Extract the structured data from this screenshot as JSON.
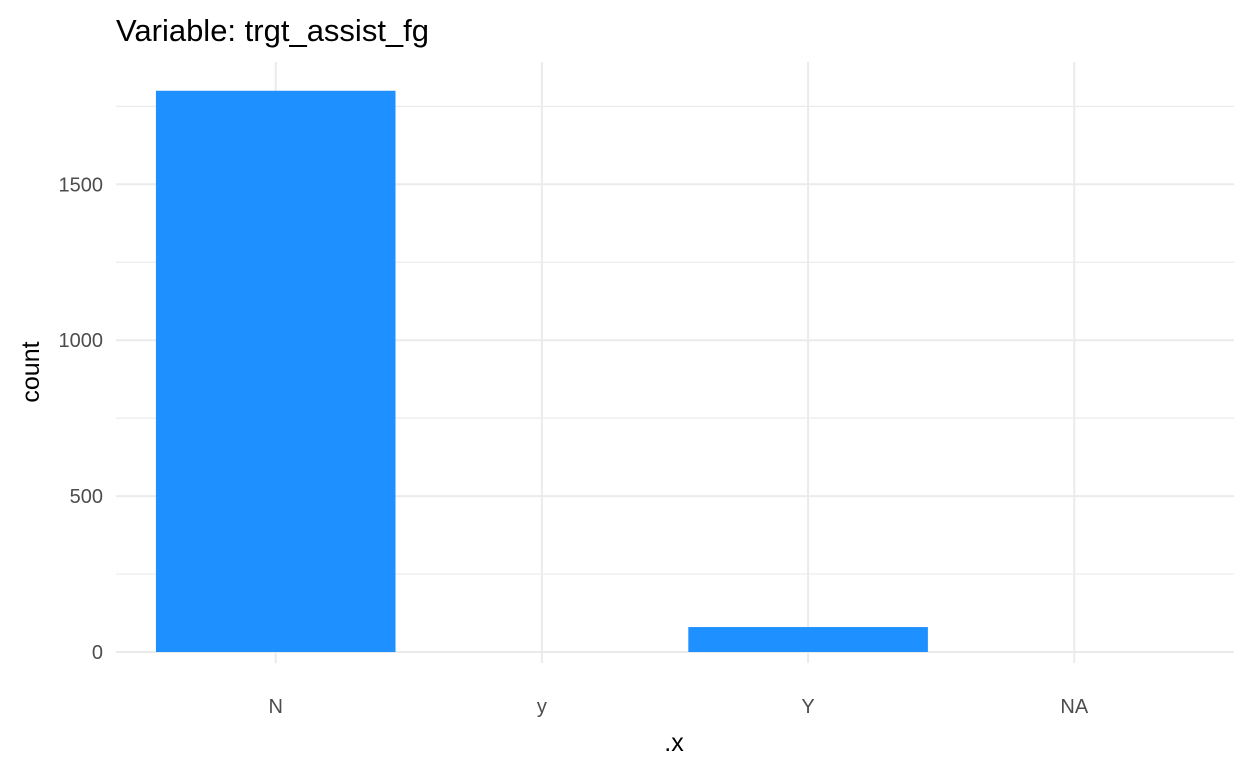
{
  "chart_data": {
    "type": "bar",
    "title": "Variable: trgt_assist_fg",
    "xlabel": ".x",
    "ylabel": "count",
    "categories": [
      "N",
      "y",
      "Y",
      "NA"
    ],
    "values": [
      1800,
      0,
      80,
      0
    ],
    "ylim": [
      0,
      1800
    ],
    "y_ticks": [
      0,
      500,
      1000,
      1500
    ],
    "grid": true,
    "theme": "minimal",
    "bar_color": "#1E90FF"
  }
}
